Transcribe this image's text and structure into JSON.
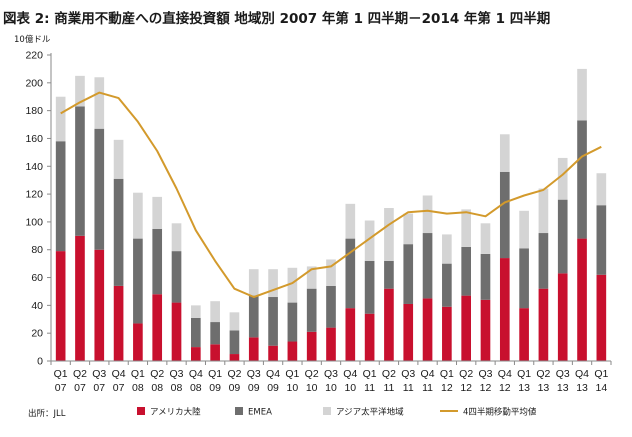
{
  "chart_data": {
    "type": "bar",
    "title": "図表 2: 商業用不動産への直接投資額 地域別 2007 年第 1 四半期－2014 年第 1 四半期",
    "ylabel": "10億ドル",
    "source": "出所：JLL",
    "ylim": [
      0,
      220
    ],
    "yticks": [
      0,
      20,
      40,
      60,
      80,
      100,
      120,
      140,
      160,
      180,
      200,
      220
    ],
    "grid": false,
    "legend_position": "bottom",
    "stacked": true,
    "categories": [
      [
        "Q1",
        "07"
      ],
      [
        "Q2",
        "07"
      ],
      [
        "Q3",
        "07"
      ],
      [
        "Q4",
        "07"
      ],
      [
        "Q1",
        "08"
      ],
      [
        "Q2",
        "08"
      ],
      [
        "Q3",
        "08"
      ],
      [
        "Q4",
        "08"
      ],
      [
        "Q1",
        "09"
      ],
      [
        "Q2",
        "09"
      ],
      [
        "Q3",
        "09"
      ],
      [
        "Q4",
        "09"
      ],
      [
        "Q1",
        "10"
      ],
      [
        "Q2",
        "10"
      ],
      [
        "Q3",
        "10"
      ],
      [
        "Q4",
        "10"
      ],
      [
        "Q1",
        "11"
      ],
      [
        "Q2",
        "11"
      ],
      [
        "Q3",
        "11"
      ],
      [
        "Q4",
        "11"
      ],
      [
        "Q1",
        "12"
      ],
      [
        "Q2",
        "12"
      ],
      [
        "Q3",
        "12"
      ],
      [
        "Q4",
        "12"
      ],
      [
        "Q1",
        "13"
      ],
      [
        "Q2",
        "13"
      ],
      [
        "Q3",
        "13"
      ],
      [
        "Q4",
        "13"
      ],
      [
        "Q1",
        "14"
      ]
    ],
    "series": [
      {
        "name": "アメリカ大陸",
        "color": "#c8102e",
        "values": [
          79,
          90,
          80,
          54,
          27,
          48,
          42,
          10,
          12,
          5,
          17,
          11,
          14,
          21,
          24,
          38,
          34,
          52,
          41,
          45,
          39,
          47,
          44,
          74,
          38,
          52,
          63,
          88,
          62
        ]
      },
      {
        "name": "EMEA",
        "color": "#6e6e6e",
        "values": [
          79,
          93,
          87,
          77,
          61,
          47,
          37,
          21,
          16,
          17,
          30,
          35,
          28,
          31,
          30,
          50,
          38,
          20,
          43,
          47,
          31,
          35,
          33,
          62,
          43,
          40,
          53,
          85,
          50
        ]
      },
      {
        "name": "アジア太平洋地域",
        "color": "#d4d4d4",
        "values": [
          32,
          22,
          37,
          28,
          33,
          23,
          20,
          9,
          15,
          13,
          19,
          20,
          25,
          16,
          19,
          25,
          29,
          38,
          22,
          27,
          21,
          27,
          22,
          27,
          27,
          32,
          30,
          37,
          23
        ]
      }
    ],
    "line_series": {
      "name": "4四半期移動平均値",
      "color": "#d39a2c",
      "values": [
        178,
        186,
        193,
        189,
        172,
        151,
        124,
        94,
        72,
        52,
        46,
        51,
        56,
        66,
        68,
        78,
        88,
        98,
        107,
        108,
        106,
        107,
        104,
        114,
        119,
        123,
        134,
        147,
        154
      ]
    }
  }
}
